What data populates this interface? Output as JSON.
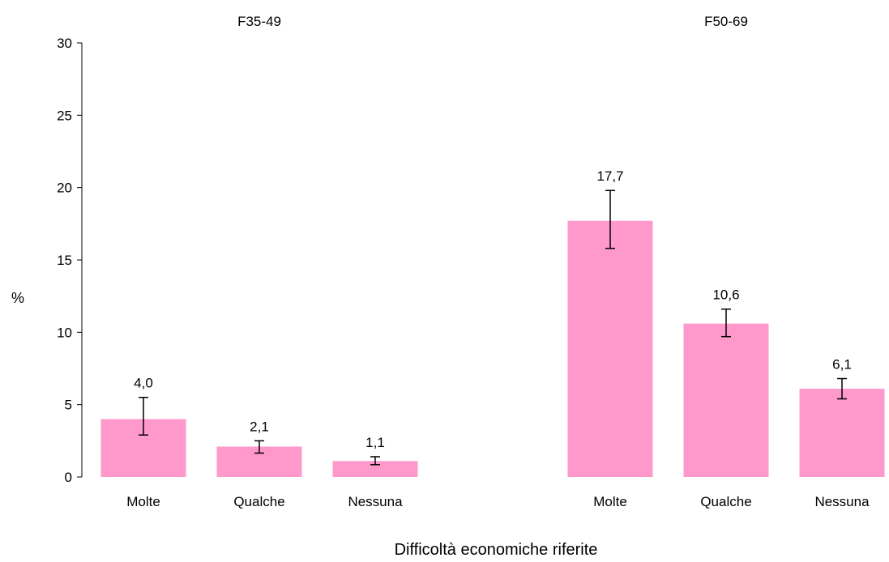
{
  "chart_data": {
    "type": "bar",
    "ylabel": "%",
    "xlabel": "Difficoltà economiche riferite",
    "ylim": [
      0,
      30
    ],
    "yticks": [
      0,
      5,
      10,
      15,
      20,
      25,
      30
    ],
    "grid": false,
    "bar_color": "#FF99CC",
    "groups": [
      {
        "title": "F35-49",
        "bars": [
          {
            "category": "Molte",
            "value": 4.0,
            "label": "4,0",
            "ci_low": 2.9,
            "ci_high": 5.5
          },
          {
            "category": "Qualche",
            "value": 2.1,
            "label": "2,1",
            "ci_low": 1.65,
            "ci_high": 2.5
          },
          {
            "category": "Nessuna",
            "value": 1.1,
            "label": "1,1",
            "ci_low": 0.85,
            "ci_high": 1.4
          }
        ]
      },
      {
        "title": "F50-69",
        "bars": [
          {
            "category": "Molte",
            "value": 17.7,
            "label": "17,7",
            "ci_low": 15.8,
            "ci_high": 19.8
          },
          {
            "category": "Qualche",
            "value": 10.6,
            "label": "10,6",
            "ci_low": 9.7,
            "ci_high": 11.6
          },
          {
            "category": "Nessuna",
            "value": 6.1,
            "label": "6,1",
            "ci_low": 5.4,
            "ci_high": 6.8
          }
        ]
      }
    ]
  }
}
